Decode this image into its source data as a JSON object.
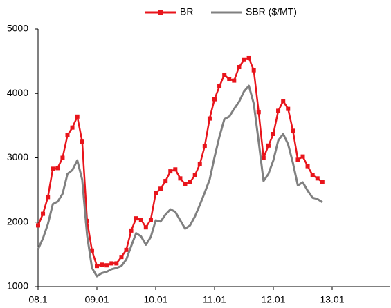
{
  "chart_data": {
    "type": "line",
    "x": [
      2008,
      2008.083,
      2008.167,
      2008.25,
      2008.333,
      2008.417,
      2008.5,
      2008.583,
      2008.667,
      2008.75,
      2008.833,
      2008.917,
      2009,
      2009.083,
      2009.167,
      2009.25,
      2009.333,
      2009.417,
      2009.5,
      2009.583,
      2009.667,
      2009.75,
      2009.833,
      2009.917,
      2010,
      2010.083,
      2010.167,
      2010.25,
      2010.333,
      2010.417,
      2010.5,
      2010.583,
      2010.667,
      2010.75,
      2010.833,
      2010.917,
      2011,
      2011.083,
      2011.167,
      2011.25,
      2011.333,
      2011.417,
      2011.5,
      2011.583,
      2011.667,
      2011.75,
      2011.833,
      2011.917,
      2012,
      2012.083,
      2012.167,
      2012.25,
      2012.333,
      2012.417,
      2012.5,
      2012.583,
      2012.667,
      2012.75,
      2012.833
    ],
    "series": [
      {
        "name": "BR",
        "color": "#e8141b",
        "marker": "square",
        "values": [
          1950,
          2130,
          2390,
          2830,
          2840,
          3000,
          3350,
          3470,
          3640,
          3250,
          2020,
          1560,
          1320,
          1340,
          1330,
          1360,
          1360,
          1460,
          1570,
          1870,
          2060,
          2040,
          1920,
          2040,
          2450,
          2520,
          2640,
          2790,
          2820,
          2680,
          2590,
          2620,
          2730,
          2900,
          3180,
          3610,
          3910,
          4110,
          4290,
          4220,
          4200,
          4410,
          4520,
          4550,
          4360,
          3710,
          3000,
          3190,
          3370,
          3730,
          3880,
          3760,
          3420,
          2970,
          3020,
          2870,
          2730,
          2680,
          2620
        ]
      },
      {
        "name": "SBR ($/MT)",
        "color": "#808080",
        "values": [
          1580,
          1750,
          1970,
          2280,
          2320,
          2440,
          2750,
          2810,
          2960,
          2660,
          1800,
          1290,
          1160,
          1210,
          1230,
          1270,
          1290,
          1320,
          1420,
          1630,
          1830,
          1780,
          1650,
          1770,
          2030,
          2010,
          2120,
          2200,
          2160,
          2030,
          1900,
          1950,
          2090,
          2270,
          2460,
          2660,
          3010,
          3330,
          3600,
          3640,
          3760,
          3870,
          4030,
          4120,
          3840,
          3250,
          2640,
          2750,
          2960,
          3270,
          3370,
          3210,
          2920,
          2570,
          2620,
          2490,
          2380,
          2360,
          2310
        ]
      }
    ],
    "xlim": [
      2008,
      2014
    ],
    "xticks": [
      {
        "value": 2008,
        "label": "08.1"
      },
      {
        "value": 2009,
        "label": "09.01"
      },
      {
        "value": 2010,
        "label": "10.01"
      },
      {
        "value": 2011,
        "label": "11.01"
      },
      {
        "value": 2012,
        "label": "12.01"
      },
      {
        "value": 2013,
        "label": "13.01"
      }
    ],
    "ylim": [
      1000,
      5000
    ],
    "yticks": [
      1000,
      2000,
      3000,
      4000,
      5000
    ],
    "grid": false,
    "legend": "top"
  }
}
